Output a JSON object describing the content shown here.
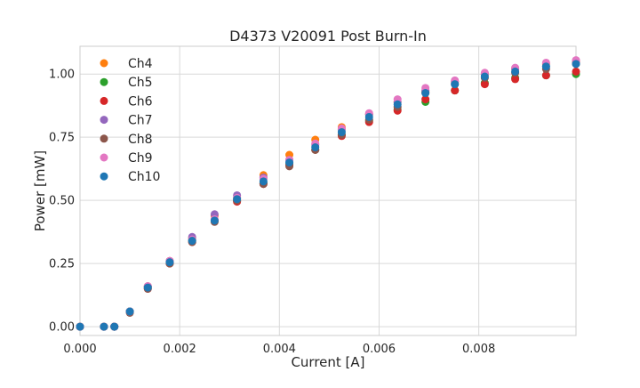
{
  "chart_data": {
    "type": "scatter",
    "title": "D4373 V20091 Post Burn-In",
    "xlabel": "Current [A]",
    "ylabel": "Power [mW]",
    "xlim": [
      0,
      0.00995
    ],
    "ylim": [
      -0.035,
      1.11
    ],
    "x_ticks": [
      0,
      0.002,
      0.004,
      0.006,
      0.008
    ],
    "x_tick_labels": [
      "0.000",
      "0.002",
      "0.004",
      "0.006",
      "0.008"
    ],
    "y_ticks": [
      0,
      0.25,
      0.5,
      0.75,
      1.0
    ],
    "y_tick_labels": [
      "0.00",
      "0.25",
      "0.50",
      "0.75",
      "1.00"
    ],
    "grid": true,
    "legend_position": "top-left",
    "x": [
      0.0,
      0.00048,
      0.00069,
      0.001,
      0.00136,
      0.0018,
      0.00225,
      0.0027,
      0.00315,
      0.00368,
      0.0042,
      0.00472,
      0.00525,
      0.0058,
      0.00637,
      0.00693,
      0.00752,
      0.00812,
      0.00873,
      0.00935,
      0.00995
    ],
    "series": [
      {
        "name": "Ch4",
        "color": "#ff7f0e",
        "values": [
          0.0,
          0.0,
          0.0,
          0.06,
          0.16,
          0.26,
          0.35,
          0.44,
          0.51,
          0.6,
          0.68,
          0.74,
          0.79,
          0.84,
          0.89,
          0.93,
          0.97,
          1.0,
          1.02,
          1.04,
          1.05
        ]
      },
      {
        "name": "Ch5",
        "color": "#2ca02c",
        "values": [
          0.0,
          0.0,
          0.0,
          0.06,
          0.155,
          0.255,
          0.34,
          0.42,
          0.5,
          0.57,
          0.645,
          0.7,
          0.76,
          0.815,
          0.86,
          0.89,
          0.935,
          0.965,
          0.985,
          0.995,
          1.0
        ]
      },
      {
        "name": "Ch6",
        "color": "#d62728",
        "values": [
          0.0,
          0.0,
          0.0,
          0.06,
          0.15,
          0.25,
          0.335,
          0.42,
          0.495,
          0.565,
          0.64,
          0.7,
          0.755,
          0.81,
          0.855,
          0.9,
          0.935,
          0.96,
          0.98,
          0.995,
          1.01
        ]
      },
      {
        "name": "Ch7",
        "color": "#9467bd",
        "values": [
          0.0,
          0.0,
          0.0,
          0.06,
          0.16,
          0.26,
          0.355,
          0.445,
          0.52,
          0.59,
          0.66,
          0.72,
          0.78,
          0.84,
          0.89,
          0.935,
          0.97,
          1.0,
          1.02,
          1.03,
          1.045
        ]
      },
      {
        "name": "Ch8",
        "color": "#8c564b",
        "values": [
          0.0,
          0.0,
          0.0,
          0.055,
          0.15,
          0.25,
          0.335,
          0.415,
          0.5,
          0.565,
          0.635,
          0.7,
          0.76,
          0.82,
          0.87,
          0.925,
          0.96,
          0.985,
          1.005,
          1.02,
          1.04
        ]
      },
      {
        "name": "Ch9",
        "color": "#e377c2",
        "values": [
          0.0,
          0.0,
          0.0,
          0.06,
          0.16,
          0.26,
          0.345,
          0.425,
          0.51,
          0.585,
          0.66,
          0.725,
          0.785,
          0.845,
          0.9,
          0.945,
          0.975,
          1.005,
          1.025,
          1.045,
          1.055
        ]
      },
      {
        "name": "Ch10",
        "color": "#1f77b4",
        "values": [
          0.0,
          0.0,
          0.0,
          0.06,
          0.155,
          0.255,
          0.34,
          0.42,
          0.505,
          0.575,
          0.65,
          0.71,
          0.77,
          0.83,
          0.88,
          0.925,
          0.96,
          0.99,
          1.01,
          1.03,
          1.04
        ]
      }
    ]
  }
}
